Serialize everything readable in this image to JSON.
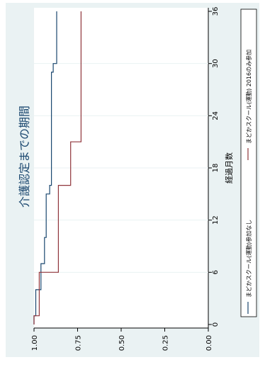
{
  "chart_data": {
    "type": "line",
    "step": true,
    "orientation": "rotated-90",
    "title": "介護認定までの期間",
    "xlabel": "経過月数",
    "ylabel": "",
    "x_ticks": [
      0,
      6,
      12,
      18,
      24,
      30,
      36
    ],
    "y_ticks": [
      0.0,
      0.25,
      0.5,
      0.75,
      1.0
    ],
    "y_tick_labels": [
      "0.00",
      "0.25",
      "0.50",
      "0.75",
      "1.00"
    ],
    "xlim": [
      0,
      36
    ],
    "ylim": [
      0,
      1
    ],
    "grid": true,
    "legend_position": "bottom",
    "series": [
      {
        "name": "まどかスクール(運動)参加なし",
        "color": "#1a476f",
        "x": [
          0,
          1,
          1,
          4,
          4,
          7,
          7,
          10,
          10,
          15,
          15,
          16,
          16,
          29,
          29,
          30,
          30,
          36
        ],
        "y": [
          1.0,
          1.0,
          0.99,
          0.99,
          0.96,
          0.96,
          0.94,
          0.94,
          0.93,
          0.93,
          0.91,
          0.91,
          0.9,
          0.9,
          0.89,
          0.89,
          0.87,
          0.87
        ]
      },
      {
        "name": "まどかスクール(運動) 2016のみ参加",
        "color": "#90353b",
        "x": [
          0,
          1,
          1,
          6,
          6,
          16,
          16,
          21,
          21,
          36
        ],
        "y": [
          1.0,
          1.0,
          0.97,
          0.97,
          0.86,
          0.86,
          0.79,
          0.79,
          0.73,
          0.73
        ]
      }
    ]
  }
}
